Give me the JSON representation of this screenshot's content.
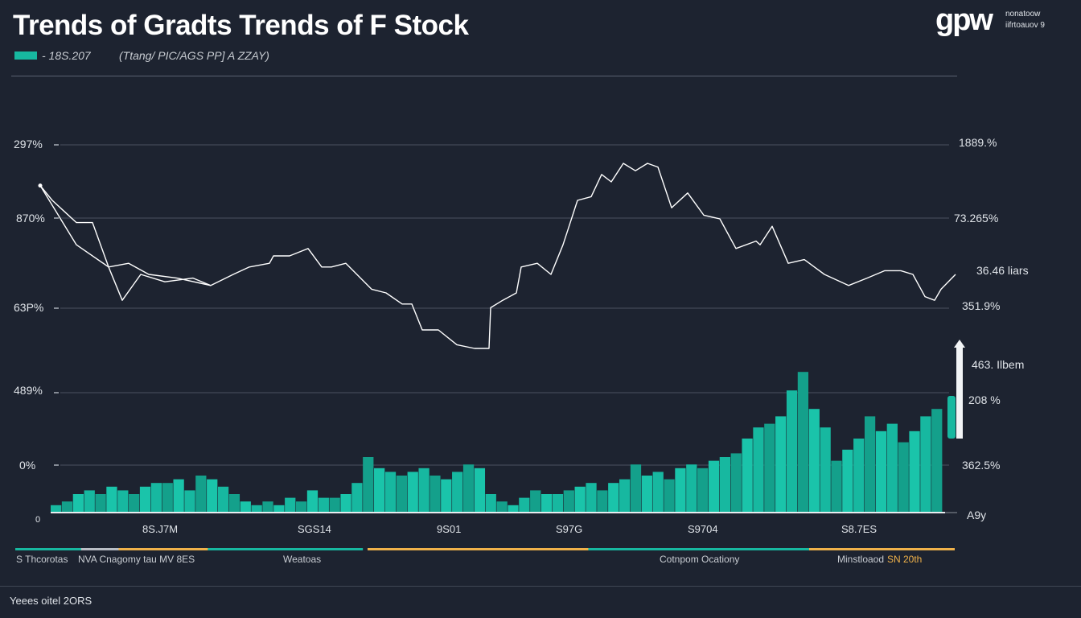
{
  "header": {
    "title": "Trends of Gradts Trends of F Stock",
    "legend_a": "- 18S.207",
    "legend_b": "(Ttang/ PIC/AGS PP] A ZZAY)",
    "logo": "gpw",
    "logo_sub1": "nonatoow",
    "logo_sub2": "iifrtoauov 9"
  },
  "colors": {
    "background": "#1d2330",
    "teal": "#17b8a0",
    "orange": "#f0b24a",
    "line": "#ffffff"
  },
  "chart_data": {
    "type": "line+bar",
    "title": "Trends of Gradts Trends of F Stock",
    "xlim": [
      0,
      1140
    ],
    "ylim": [
      0,
      100
    ],
    "grid": true,
    "left_ticks": [
      "297%",
      "870%",
      "63P%",
      "489%",
      "0%",
      "0"
    ],
    "right_ticks": [
      "1889.%",
      "73.265%",
      "36.46 liars",
      "351.9%",
      "463. Ilbem",
      "208 %",
      "362.5%",
      "A9y"
    ],
    "x_ticks": [
      "8S.J7M",
      "SGS14",
      "9S01",
      "S97G",
      "S9704",
      "S8.7ES"
    ],
    "series": [
      {
        "name": "stock-line-main",
        "type": "line",
        "points": [
          [
            0,
            89
          ],
          [
            15,
            85
          ],
          [
            30,
            82
          ],
          [
            45,
            79
          ],
          [
            65,
            79
          ],
          [
            85,
            67
          ],
          [
            102,
            58
          ],
          [
            125,
            65
          ],
          [
            155,
            63
          ],
          [
            190,
            64
          ],
          [
            212,
            62
          ],
          [
            240,
            65
          ],
          [
            260,
            67
          ],
          [
            285,
            68
          ],
          [
            290,
            70
          ],
          [
            310,
            70
          ],
          [
            333,
            72
          ],
          [
            350,
            67
          ],
          [
            362,
            67
          ],
          [
            380,
            68
          ],
          [
            412,
            61
          ],
          [
            430,
            60
          ],
          [
            450,
            57
          ],
          [
            462,
            57
          ],
          [
            475,
            50
          ],
          [
            495,
            50
          ],
          [
            518,
            46
          ],
          [
            540,
            45
          ],
          [
            558,
            45
          ],
          [
            560,
            56
          ],
          [
            575,
            58
          ],
          [
            592,
            60
          ],
          [
            598,
            67
          ],
          [
            618,
            68
          ],
          [
            635,
            65
          ],
          [
            650,
            73
          ],
          [
            668,
            85
          ],
          [
            685,
            86
          ],
          [
            698,
            92
          ],
          [
            710,
            90
          ],
          [
            725,
            95
          ],
          [
            740,
            93
          ],
          [
            755,
            95
          ],
          [
            768,
            94
          ],
          [
            785,
            83
          ],
          [
            805,
            87
          ],
          [
            825,
            81
          ],
          [
            845,
            80
          ],
          [
            865,
            72
          ],
          [
            890,
            74
          ],
          [
            895,
            73
          ],
          [
            910,
            78
          ],
          [
            930,
            68
          ],
          [
            950,
            69
          ],
          [
            975,
            65
          ],
          [
            1005,
            62
          ],
          [
            1028,
            64
          ],
          [
            1050,
            66
          ],
          [
            1070,
            66
          ],
          [
            1085,
            65
          ],
          [
            1100,
            59
          ],
          [
            1112,
            58
          ],
          [
            1120,
            61
          ],
          [
            1138,
            65
          ]
        ]
      },
      {
        "name": "stock-line-secondary",
        "type": "line",
        "points": [
          [
            0,
            89
          ],
          [
            45,
            73
          ],
          [
            85,
            67
          ],
          [
            110,
            68
          ],
          [
            135,
            65
          ],
          [
            170,
            64
          ],
          [
            212,
            62
          ]
        ]
      },
      {
        "name": "volume-bars",
        "type": "bar",
        "values": [
          2,
          3,
          5,
          6,
          5,
          7,
          6,
          5,
          7,
          8,
          8,
          9,
          6,
          10,
          9,
          7,
          5,
          3,
          2,
          3,
          2,
          4,
          3,
          6,
          4,
          4,
          5,
          8,
          15,
          12,
          11,
          10,
          11,
          12,
          10,
          9,
          11,
          13,
          12,
          5,
          3,
          2,
          4,
          6,
          5,
          5,
          6,
          7,
          8,
          6,
          8,
          9,
          13,
          10,
          11,
          9,
          12,
          13,
          12,
          14,
          15,
          16,
          20,
          23,
          24,
          26,
          33,
          38,
          28,
          23,
          14,
          17,
          20,
          26,
          22,
          24,
          19,
          22,
          26,
          28
        ]
      }
    ]
  },
  "band": {
    "segments": [
      {
        "color": "teal",
        "from": 0,
        "to": 0.11
      },
      {
        "color": "gray",
        "from": 0.07,
        "to": 0.11
      },
      {
        "color": "orange",
        "from": 0.11,
        "to": 0.205
      },
      {
        "color": "teal",
        "from": 0.205,
        "to": 0.37
      },
      {
        "color": "orange",
        "from": 0.375,
        "to": 0.61
      },
      {
        "color": "teal",
        "from": 0.61,
        "to": 0.845
      },
      {
        "color": "orange",
        "from": 0.845,
        "to": 1
      }
    ],
    "labels": [
      "S Thcorotas",
      "NVA Cnagomy tau MV 8ES",
      "Weatoas",
      "Cotnpom Ocationy",
      "Minstloaod"
    ],
    "label_highlight": "SN 20th"
  },
  "footer": {
    "text": "Yeees oitel 2ORS"
  }
}
